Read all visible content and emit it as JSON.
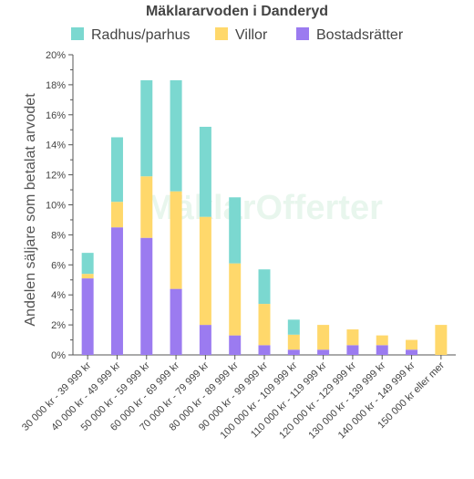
{
  "chart_data": {
    "type": "bar",
    "stacked": true,
    "title": "Mäklararvoden i Danderyd",
    "ylabel": "Andelen säljare som betalat arvodet",
    "xlabel": "",
    "ylim": [
      0,
      20
    ],
    "y_unit": "%",
    "yticks": [
      0,
      2,
      4,
      6,
      8,
      10,
      12,
      14,
      16,
      18,
      20
    ],
    "grid": false,
    "legend_position": "top",
    "watermark": "MäklarOfferter",
    "categories": [
      "30 000 kr - 39 999 kr",
      "40 000 kr - 49 999 kr",
      "50 000 kr - 59 999 kr",
      "60 000 kr - 69 999 kr",
      "70 000 kr - 79 999 kr",
      "80 000 kr - 89 999 kr",
      "90 000 kr - 99 999 kr",
      "100 000 kr - 109 999 kr",
      "110 000 kr - 119 999 kr",
      "120 000 kr - 129 999 kr",
      "130 000 kr - 139 999 kr",
      "140 000 kr - 149 999 kr",
      "150 000 kr eller mer"
    ],
    "series": [
      {
        "name": "Bostadsrätter",
        "color": "#9b7bf0",
        "values": [
          5.1,
          8.5,
          7.8,
          4.4,
          2.0,
          1.3,
          0.65,
          0.35,
          0.35,
          0.65,
          0.65,
          0.35,
          0.0
        ]
      },
      {
        "name": "Villor",
        "color": "#ffd86b",
        "values": [
          0.3,
          1.7,
          4.1,
          6.5,
          7.2,
          4.8,
          2.75,
          1.0,
          1.65,
          1.05,
          0.65,
          0.65,
          2.0
        ]
      },
      {
        "name": "Radhus/parhus",
        "color": "#7bd8d0",
        "values": [
          1.4,
          4.3,
          6.4,
          7.4,
          6.0,
          4.4,
          2.3,
          1.0,
          0.0,
          0.0,
          0.0,
          0.0,
          0.0
        ]
      }
    ],
    "legend_order": [
      "Radhus/parhus",
      "Villor",
      "Bostadsrätter"
    ]
  }
}
